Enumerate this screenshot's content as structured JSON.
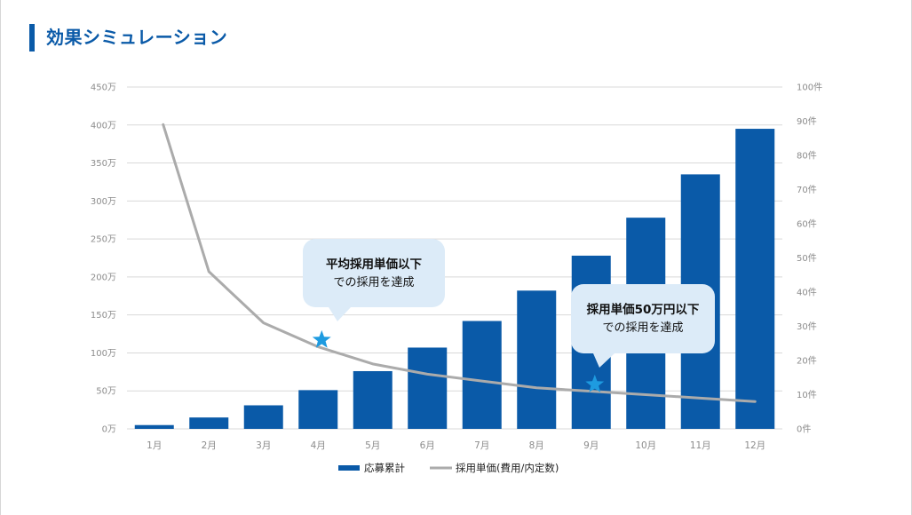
{
  "title": "効果シミュレーション",
  "colors": {
    "accent": "#0a5aa8",
    "bar": "#0a5aa8",
    "line": "#ababab",
    "grid": "#d9d9d9",
    "callout": "#dcebf8",
    "star": "#1e9be0"
  },
  "chart_data": {
    "type": "bar+line",
    "categories": [
      "1月",
      "2月",
      "3月",
      "4月",
      "5月",
      "6月",
      "7月",
      "8月",
      "9月",
      "10月",
      "11月",
      "12月"
    ],
    "series": [
      {
        "name": "応募累計",
        "type": "bar",
        "axis": "left",
        "values": [
          5,
          15,
          31,
          51,
          76,
          107,
          142,
          182,
          228,
          278,
          335,
          395
        ]
      },
      {
        "name": "採用単価(費用/内定数)",
        "type": "line",
        "axis": "right",
        "values": [
          89,
          46,
          31,
          24,
          19,
          16,
          14,
          12,
          11,
          10,
          9,
          8
        ]
      }
    ],
    "y_left": {
      "range": [
        0,
        450
      ],
      "ticks": [
        "0万",
        "50万",
        "100万",
        "150万",
        "200万",
        "250万",
        "300万",
        "350万",
        "400万",
        "450万"
      ]
    },
    "y_right": {
      "range": [
        0,
        100
      ],
      "ticks": [
        "0件",
        "10件",
        "20件",
        "30件",
        "40件",
        "50件",
        "60件",
        "70件",
        "80件",
        "90件",
        "100件"
      ]
    },
    "grid": true,
    "legend_position": "bottom",
    "annotations": [
      {
        "title": "平均採用単価以下",
        "subtitle": "での採用を達成",
        "month": "4月",
        "star_value": 26
      },
      {
        "title": "採用単価50万円以下",
        "subtitle": "での採用を達成",
        "month": "9月",
        "star_value": 13
      }
    ]
  }
}
